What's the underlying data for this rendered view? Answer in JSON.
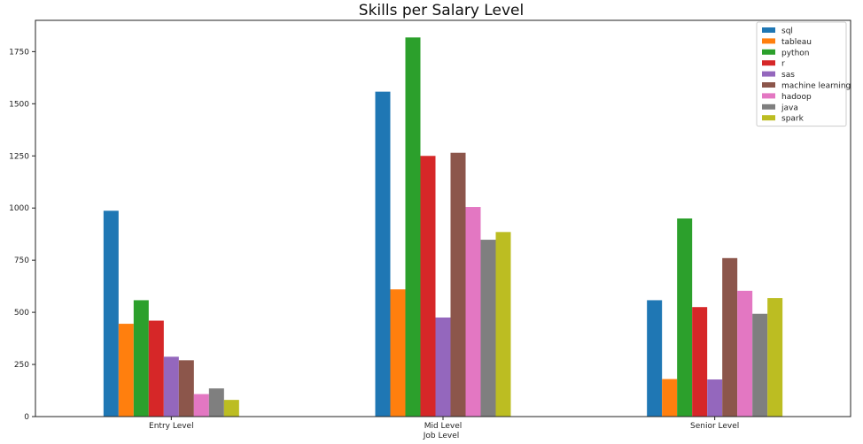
{
  "chart_data": {
    "type": "bar",
    "title": "Skills per Salary Level",
    "xlabel": "Job Level",
    "ylabel": "",
    "categories": [
      "Entry Level",
      "Mid Level",
      "Senior Level"
    ],
    "ylim": [
      0,
      1900
    ],
    "yticks": [
      0,
      250,
      500,
      750,
      1000,
      1250,
      1500,
      1750
    ],
    "legend_position": "top-right",
    "grid": false,
    "series": [
      {
        "name": "sql",
        "color": "#1f77b4",
        "values": [
          987,
          1558,
          558
        ]
      },
      {
        "name": "tableau",
        "color": "#ff7f0e",
        "values": [
          445,
          610,
          180
        ]
      },
      {
        "name": "python",
        "color": "#2ca02c",
        "values": [
          558,
          1818,
          950
        ]
      },
      {
        "name": "r",
        "color": "#d62728",
        "values": [
          460,
          1250,
          525
        ]
      },
      {
        "name": "sas",
        "color": "#9467bd",
        "values": [
          287,
          475,
          178
        ]
      },
      {
        "name": "machine learning",
        "color": "#8c564b",
        "values": [
          270,
          1265,
          760
        ]
      },
      {
        "name": "hadoop",
        "color": "#e377c2",
        "values": [
          108,
          1005,
          603
        ]
      },
      {
        "name": "java",
        "color": "#7f7f7f",
        "values": [
          135,
          848,
          493
        ]
      },
      {
        "name": "spark",
        "color": "#bcbd22",
        "values": [
          80,
          885,
          568
        ]
      }
    ]
  }
}
